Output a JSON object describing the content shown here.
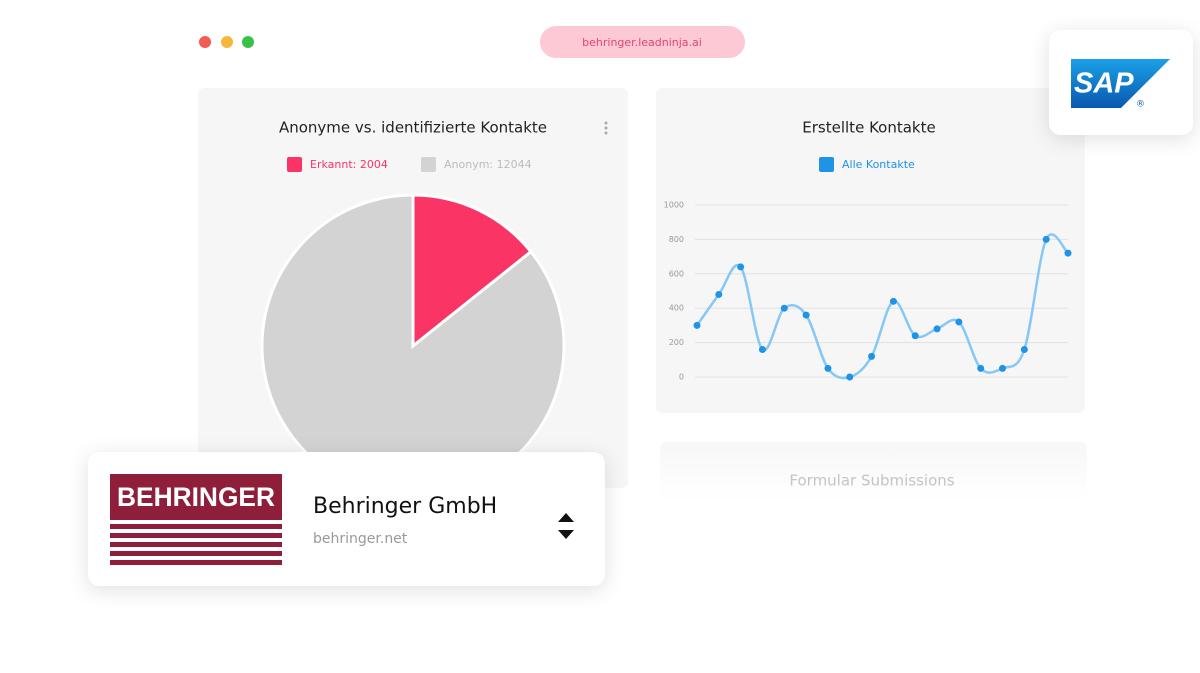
{
  "browser": {
    "url": "behringer.leadninja.ai"
  },
  "chart_data": [
    {
      "type": "pie",
      "title": "Anonyme vs. identifizierte Kontakte",
      "categories": [
        "Erkannt: 2004",
        "Anonym: 12044"
      ],
      "values": [
        2004,
        12044
      ],
      "colors": [
        "#fa3464",
        "#d3d3d3"
      ]
    },
    {
      "type": "line",
      "title": "Erstellte Kontakte",
      "series": [
        {
          "name": "Alle Kontakte",
          "color": "#1f93e8",
          "values": [
            300,
            480,
            640,
            160,
            400,
            360,
            50,
            0,
            120,
            440,
            240,
            280,
            320,
            50,
            50,
            160,
            800,
            720
          ]
        }
      ],
      "ylim": [
        0,
        1000
      ],
      "yticks": [
        0,
        200,
        400,
        600,
        800,
        1000
      ],
      "grid": true
    }
  ],
  "form_card": {
    "title": "Formular Submissions"
  },
  "company_card": {
    "logo_text": "BEHRINGER",
    "name": "Behringer GmbH",
    "domain": "behringer.net"
  },
  "sap_logo": {
    "text": "SAP",
    "mark": "®"
  }
}
